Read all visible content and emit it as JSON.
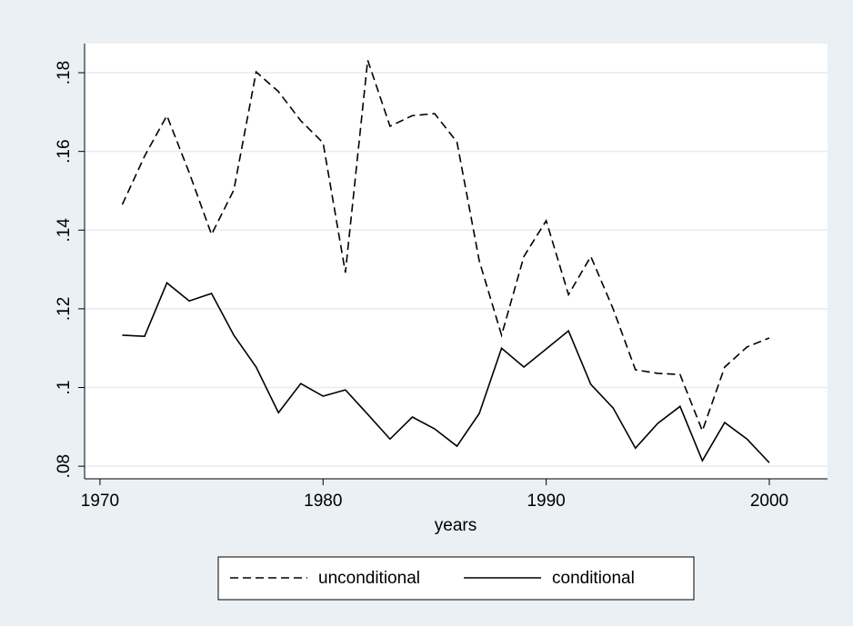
{
  "chart_data": {
    "type": "line",
    "x": [
      1971,
      1972,
      1973,
      1974,
      1975,
      1976,
      1977,
      1978,
      1979,
      1980,
      1981,
      1982,
      1983,
      1984,
      1985,
      1986,
      1987,
      1988,
      1989,
      1990,
      1991,
      1992,
      1993,
      1994,
      1995,
      1996,
      1997,
      1998,
      1999,
      2000
    ],
    "series": [
      {
        "name": "unconditional",
        "color": "#000000",
        "dash": "dashed",
        "values": [
          0.1465,
          0.1588,
          0.1691,
          0.1546,
          0.1389,
          0.1502,
          0.1802,
          0.1752,
          0.1678,
          0.1622,
          0.1292,
          0.1832,
          0.1664,
          0.1691,
          0.1696,
          0.1624,
          0.1322,
          0.1133,
          0.1333,
          0.1424,
          0.1236,
          0.1333,
          0.12,
          0.1045,
          0.1036,
          0.1033,
          0.089,
          0.1052,
          0.1103,
          0.1126
        ]
      },
      {
        "name": "conditional",
        "color": "#000000",
        "dash": "solid",
        "values": [
          0.1133,
          0.113,
          0.1266,
          0.122,
          0.1239,
          0.1133,
          0.1052,
          0.0936,
          0.101,
          0.0978,
          0.0994,
          0.0932,
          0.0869,
          0.0925,
          0.0895,
          0.0851,
          0.0934,
          0.11,
          0.1052,
          0.1098,
          0.1144,
          0.1008,
          0.0948,
          0.0846,
          0.0909,
          0.0952,
          0.0814,
          0.0911,
          0.0869,
          0.0809
        ]
      }
    ],
    "x_label": "years",
    "xlim": [
      1969.31,
      2002.61
    ],
    "xticks": [
      1970,
      1980,
      1990,
      2000
    ],
    "ylim": [
      0.0768,
      0.1874
    ],
    "yticks": [
      {
        "value": 0.08,
        "label": ".08"
      },
      {
        "value": 0.1,
        "label": ".1"
      },
      {
        "value": 0.12,
        "label": ".12"
      },
      {
        "value": 0.14,
        "label": ".14"
      },
      {
        "value": 0.16,
        "label": ".16"
      },
      {
        "value": 0.18,
        "label": ".18"
      }
    ],
    "grid": true,
    "legend": "bottom"
  }
}
